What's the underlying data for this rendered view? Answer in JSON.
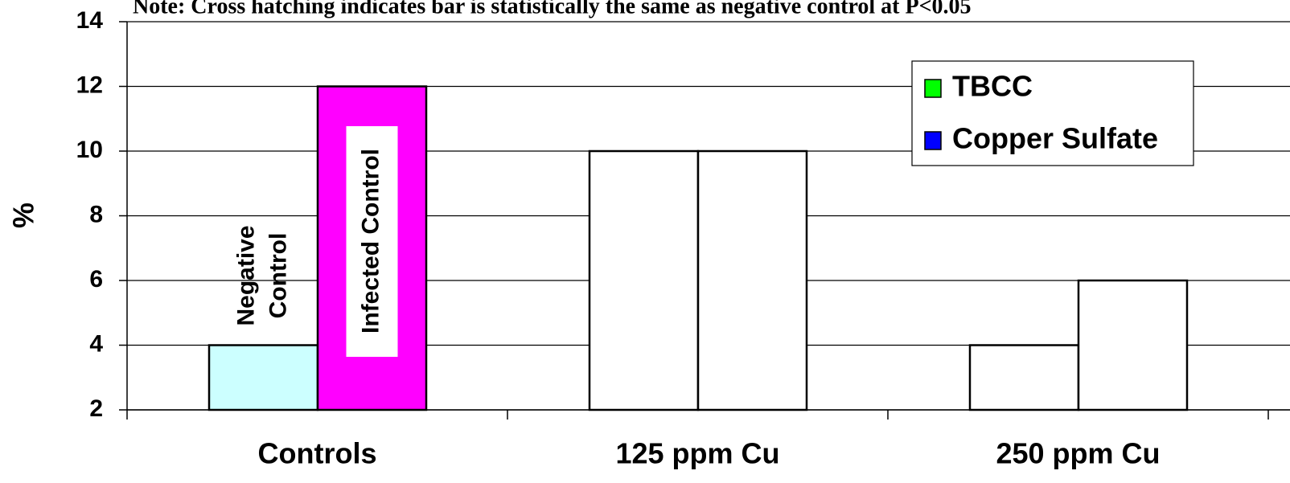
{
  "chart_data": {
    "type": "bar",
    "title": "Note:  Cross hatching indicates bar is statistically the same as negative control at P<0.05",
    "y_label": "%",
    "categories": [
      "Controls",
      "125 ppm Cu",
      "250 ppm Cu"
    ],
    "control_bars": [
      {
        "label": [
          "Negative",
          "Control"
        ],
        "value": 4,
        "color": "#ccffff"
      },
      {
        "label": [
          "Infected Control"
        ],
        "value": 12,
        "color": "#ff00ff"
      }
    ],
    "series": [
      {
        "name": "TBCC",
        "color": "#00ff00",
        "values": [
          null,
          10,
          4
        ]
      },
      {
        "name": "Copper Sulfate",
        "color": "#0000ff",
        "values": [
          null,
          10,
          6
        ]
      }
    ],
    "bar_fill": "#ffffff",
    "ylim": [
      2,
      14
    ],
    "yticks": [
      2,
      4,
      6,
      8,
      10,
      12,
      14
    ],
    "grid": true,
    "legend": "top-right"
  }
}
